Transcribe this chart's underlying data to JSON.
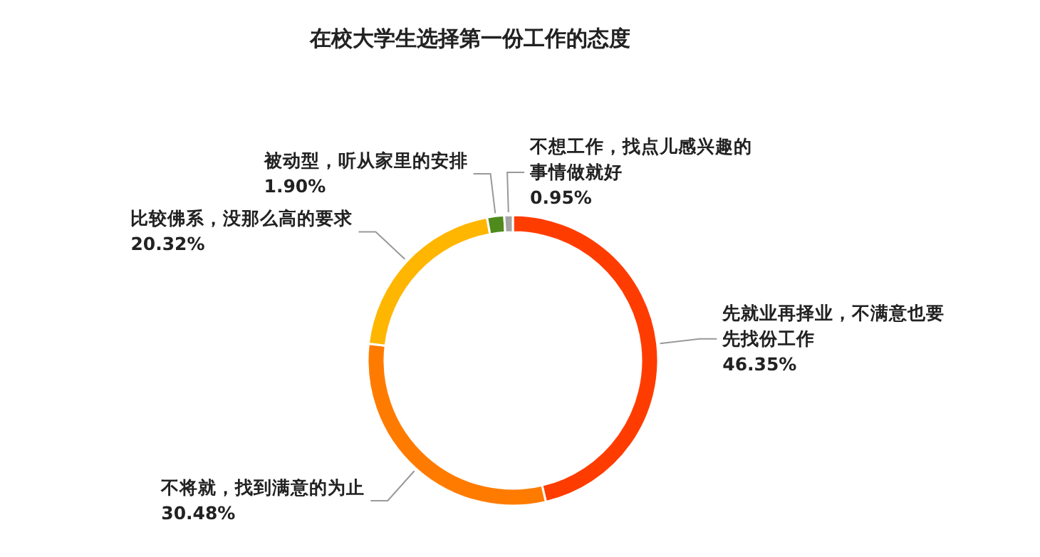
{
  "chart_data": {
    "type": "donut",
    "title": "在校大学生选择第一份工作的态度",
    "categories": [
      "先就业再择业，不满意也要先找份工作",
      "不将就，找到满意的为止",
      "比较佛系，没那么高的要求",
      "被动型，听从家里的安排",
      "不想工作，找点儿感兴趣的事情做就好"
    ],
    "values": [
      46.35,
      30.48,
      20.32,
      1.9,
      0.95
    ],
    "colors": [
      "#ff3c00",
      "#ff7b00",
      "#ffb600",
      "#4f8a1d",
      "#a5a5a5"
    ],
    "value_labels": [
      "46.35%",
      "30.48%",
      "20.32%",
      "1.90%",
      "0.95%"
    ]
  }
}
